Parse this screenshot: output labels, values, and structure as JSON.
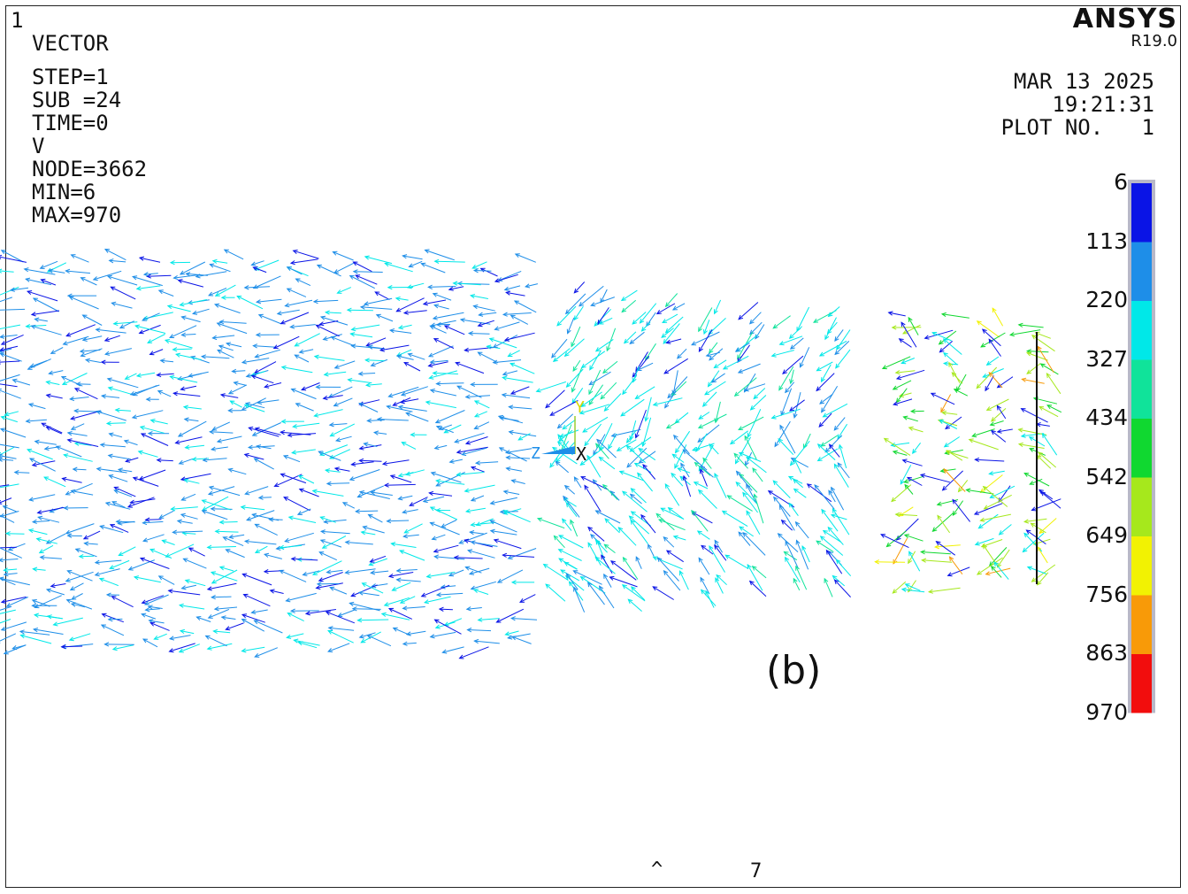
{
  "window_number": "1",
  "info_block": {
    "title": "VECTOR",
    "step": "STEP=1",
    "sub": "SUB =24",
    "time": "TIME=0",
    "quantity": "V",
    "node": "NODE=3662",
    "min": "MIN=6",
    "max": "MAX=970"
  },
  "brand": {
    "name": "ANSYS",
    "release": "R19.0"
  },
  "date_block": {
    "date": "MAR 13 2025",
    "time": "19:21:31",
    "plot": "PLOT NO.   1"
  },
  "colorbar": {
    "labels": [
      "6",
      "113",
      "220",
      "327",
      "434",
      "542",
      "649",
      "756",
      "863",
      "970"
    ],
    "colors": [
      "#0a14e6",
      "#1e8ee8",
      "#00e8e8",
      "#10e39a",
      "#10d830",
      "#a6e81c",
      "#f2f202",
      "#f89a08",
      "#f20d0d"
    ]
  },
  "triad": {
    "x": "X",
    "y": "Y",
    "z": "Z"
  },
  "panel_label": "(b)",
  "bottom_marks": {
    "caret": "^",
    "seven": "7"
  }
}
